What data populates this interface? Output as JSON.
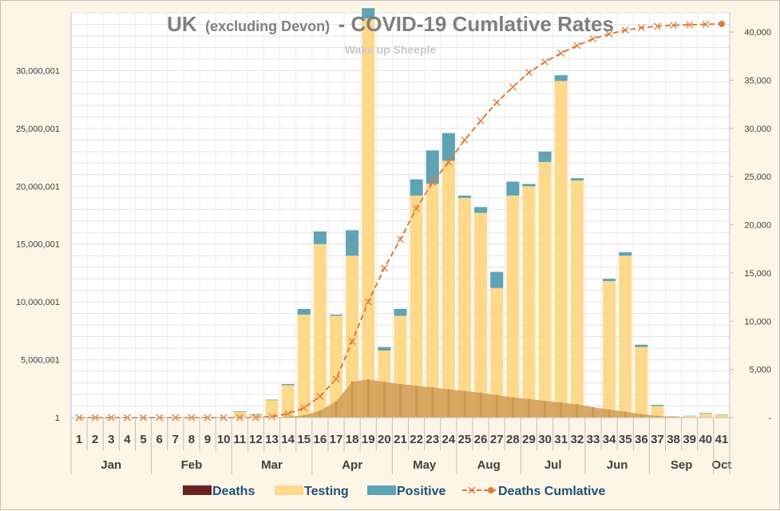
{
  "chart_data": {
    "type": "bar",
    "title": "UK",
    "title_note": "(excluding Devon)",
    "title_rest": "- COVID-19 Cumlative Rates",
    "subtitle": "Wake up Sheeple",
    "categories": [
      "1",
      "2",
      "3",
      "4",
      "5",
      "6",
      "7",
      "8",
      "9",
      "10",
      "11",
      "12",
      "13",
      "14",
      "15",
      "16",
      "17",
      "18",
      "19",
      "20",
      "21",
      "22",
      "23",
      "24",
      "25",
      "26",
      "27",
      "28",
      "29",
      "30",
      "31",
      "32",
      "33",
      "34",
      "35",
      "36",
      "37",
      "38",
      "39",
      "40",
      "41"
    ],
    "months": [
      {
        "label": "Jan",
        "from": 1,
        "to": 5
      },
      {
        "label": "Feb",
        "from": 6,
        "to": 10
      },
      {
        "label": "Mar",
        "from": 11,
        "to": 15
      },
      {
        "label": "Apr",
        "from": 16,
        "to": 20
      },
      {
        "label": "May",
        "from": 21,
        "to": 24
      },
      {
        "label": "Aug",
        "from": 25,
        "to": 28
      },
      {
        "label": "Jul",
        "from": 29,
        "to": 32
      },
      {
        "label": "Jun",
        "from": 33,
        "to": 36
      },
      {
        "label": "Sep",
        "from": 37,
        "to": 40
      },
      {
        "label": "Oct",
        "from": 41,
        "to": 41
      }
    ],
    "y_left": {
      "ticks": [
        1,
        5000001,
        10000001,
        15000001,
        20000001,
        25000001,
        30000001
      ],
      "tick_labels": [
        "1",
        "5,000,001",
        "10,000,001",
        "15,000,001",
        "20,000,001",
        "25,000,001",
        "30,000,001"
      ],
      "range": [
        1,
        35000000
      ]
    },
    "y_right": {
      "ticks": [
        0,
        5000,
        10000,
        15000,
        20000,
        25000,
        30000,
        35000,
        40000
      ],
      "tick_labels": [
        "-",
        "5,000",
        "10,000",
        "15,000",
        "20,000",
        "25,000",
        "30,000",
        "35,000",
        "40,000"
      ],
      "range": [
        0,
        42000
      ]
    },
    "series": [
      {
        "name": "Deaths",
        "color": "#6b2020",
        "axis": "left",
        "values": [
          0,
          0,
          0,
          0,
          0,
          0,
          0,
          0,
          0,
          0,
          0,
          0,
          20000,
          60000,
          200000,
          600000,
          1400000,
          3100000,
          3300000,
          3100000,
          2900000,
          2750000,
          2600000,
          2450000,
          2300000,
          2150000,
          1950000,
          1750000,
          1600000,
          1450000,
          1300000,
          1150000,
          900000,
          700000,
          500000,
          300000,
          150000,
          60000,
          30000,
          20000,
          15000
        ]
      },
      {
        "name": "Testing",
        "color": "#ffd98b",
        "axis": "left",
        "values": [
          0,
          0,
          0,
          0,
          0,
          0,
          0,
          0,
          0,
          0,
          500000,
          250000,
          1500000,
          2800000,
          8900000,
          15000000,
          8800000,
          14000000,
          34500000,
          5800000,
          8800000,
          19200000,
          20200000,
          22200000,
          19000000,
          17700000,
          11200000,
          19200000,
          20000000,
          22100000,
          29100000,
          20500000,
          500000,
          11800000,
          14000000,
          6100000,
          1000000,
          100000,
          150000,
          350000,
          250000
        ]
      },
      {
        "name": "Positive",
        "color": "#5fa3b5",
        "axis": "left",
        "values": [
          0,
          0,
          0,
          0,
          0,
          0,
          0,
          0,
          0,
          0,
          50000,
          50000,
          50000,
          100000,
          500000,
          1100000,
          100000,
          2200000,
          900000,
          300000,
          600000,
          1400000,
          2900000,
          2400000,
          200000,
          500000,
          1400000,
          1200000,
          200000,
          900000,
          500000,
          200000,
          50000,
          200000,
          300000,
          200000,
          100000,
          20000,
          20000,
          50000,
          30000
        ]
      },
      {
        "name": "Deaths Cumlative",
        "color": "#e07a3a",
        "axis": "right",
        "type": "line",
        "values": [
          0,
          0,
          0,
          0,
          0,
          0,
          0,
          0,
          0,
          0,
          0,
          0,
          100,
          400,
          1000,
          2200,
          4000,
          7900,
          12000,
          15500,
          18500,
          21700,
          24400,
          26500,
          28800,
          30800,
          32700,
          34300,
          35800,
          36900,
          37800,
          38600,
          39300,
          39800,
          40200,
          40450,
          40600,
          40700,
          40750,
          40800,
          40850
        ]
      }
    ],
    "legend": [
      "Deaths",
      "Testing",
      "Positive",
      "Deaths Cumlative"
    ],
    "legend_position": "bottom",
    "grid": true
  }
}
